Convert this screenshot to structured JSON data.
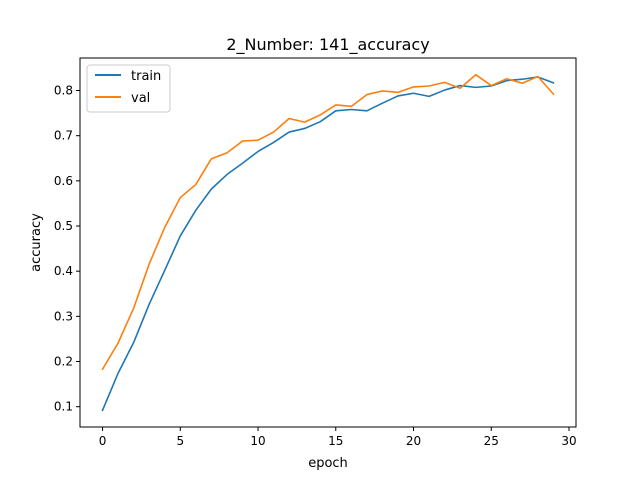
{
  "chart_data": {
    "type": "line",
    "title": "2_Number: 141_accuracy",
    "xlabel": "epoch",
    "ylabel": "accuracy",
    "xlim": [
      -1.45,
      30.45
    ],
    "ylim": [
      0.055,
      0.872
    ],
    "xticks": [
      0,
      5,
      10,
      15,
      20,
      25,
      30
    ],
    "yticks": [
      0.1,
      0.2,
      0.3,
      0.4,
      0.5,
      0.6,
      0.7,
      0.8
    ],
    "grid": false,
    "legend_position": "top-left",
    "x": [
      0,
      1,
      2,
      3,
      4,
      5,
      6,
      7,
      8,
      9,
      10,
      11,
      12,
      13,
      14,
      15,
      16,
      17,
      18,
      19,
      20,
      21,
      22,
      23,
      24,
      25,
      26,
      27,
      28,
      29
    ],
    "series": [
      {
        "name": "train",
        "color": "#1f77b4",
        "values": [
          0.092,
          0.174,
          0.242,
          0.327,
          0.402,
          0.478,
          0.535,
          0.582,
          0.614,
          0.639,
          0.665,
          0.685,
          0.708,
          0.716,
          0.731,
          0.755,
          0.758,
          0.755,
          0.772,
          0.788,
          0.794,
          0.787,
          0.801,
          0.811,
          0.807,
          0.81,
          0.822,
          0.825,
          0.83,
          0.817
        ]
      },
      {
        "name": "val",
        "color": "#ff7f0e",
        "values": [
          0.183,
          0.241,
          0.318,
          0.416,
          0.497,
          0.563,
          0.592,
          0.649,
          0.662,
          0.688,
          0.69,
          0.708,
          0.738,
          0.73,
          0.746,
          0.768,
          0.765,
          0.791,
          0.799,
          0.796,
          0.808,
          0.81,
          0.818,
          0.805,
          0.835,
          0.811,
          0.826,
          0.816,
          0.831,
          0.792
        ]
      }
    ]
  }
}
